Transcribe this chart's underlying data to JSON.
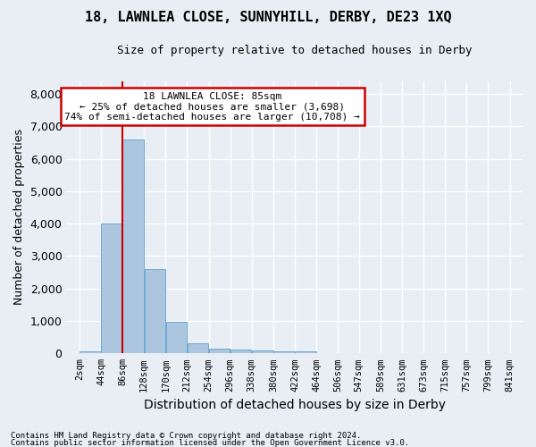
{
  "title": "18, LAWNLEA CLOSE, SUNNYHILL, DERBY, DE23 1XQ",
  "subtitle": "Size of property relative to detached houses in Derby",
  "xlabel": "Distribution of detached houses by size in Derby",
  "ylabel": "Number of detached properties",
  "bar_color": "#adc6e0",
  "bar_edge_color": "#6aaad4",
  "marker_line_color": "#cc0000",
  "bin_edges": [
    2,
    44,
    86,
    128,
    170,
    212,
    254,
    296,
    338,
    380,
    422,
    464,
    506,
    547,
    589,
    631,
    673,
    715,
    757,
    799,
    841
  ],
  "bin_labels": [
    "2sqm",
    "44sqm",
    "86sqm",
    "128sqm",
    "170sqm",
    "212sqm",
    "254sqm",
    "296sqm",
    "338sqm",
    "380sqm",
    "422sqm",
    "464sqm",
    "506sqm",
    "547sqm",
    "589sqm",
    "631sqm",
    "673sqm",
    "715sqm",
    "757sqm",
    "799sqm",
    "841sqm"
  ],
  "bar_heights": [
    60,
    4000,
    6600,
    2600,
    970,
    310,
    140,
    120,
    80,
    55,
    55,
    0,
    0,
    0,
    0,
    0,
    0,
    0,
    0,
    0
  ],
  "ylim": [
    0,
    8400
  ],
  "yticks": [
    0,
    1000,
    2000,
    3000,
    4000,
    5000,
    6000,
    7000,
    8000
  ],
  "annotation_title": "18 LAWNLEA CLOSE: 85sqm",
  "annotation_line1": "← 25% of detached houses are smaller (3,698)",
  "annotation_line2": "74% of semi-detached houses are larger (10,708) →",
  "annotation_box_color": "#ffffff",
  "annotation_box_edge": "#cc0000",
  "footer_line1": "Contains HM Land Registry data © Crown copyright and database right 2024.",
  "footer_line2": "Contains public sector information licensed under the Open Government Licence v3.0.",
  "background_color": "#e8eef4",
  "plot_background": "#e8eef4",
  "grid_color": "#ffffff"
}
